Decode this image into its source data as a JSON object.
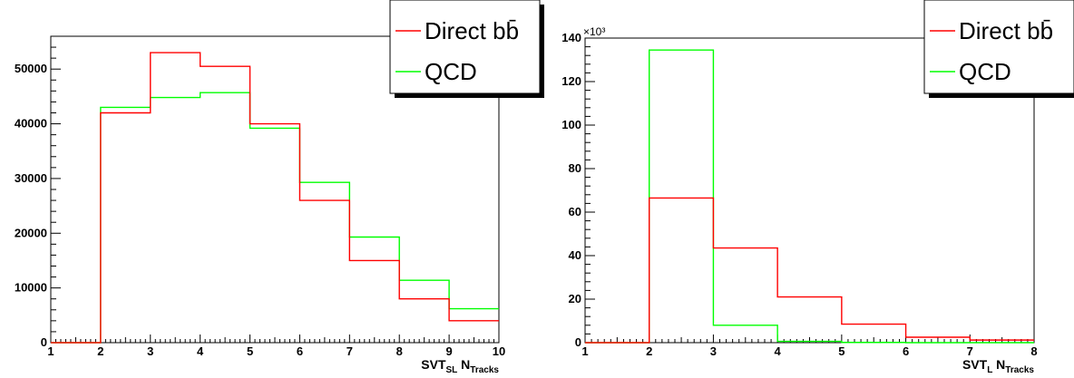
{
  "chart_data": [
    {
      "type": "histogram",
      "xlim": [
        1,
        10
      ],
      "ylim": [
        0,
        56000
      ],
      "x_ticks": [
        1,
        2,
        3,
        4,
        5,
        6,
        7,
        8,
        9,
        10
      ],
      "y_ticks": [
        0,
        10000,
        20000,
        30000,
        40000,
        50000
      ],
      "x_title": {
        "main": "SVT",
        "sub": "SL",
        "main2": "N",
        "sub2": "Tracks"
      },
      "bin_edges": [
        1,
        2,
        3,
        4,
        5,
        6,
        7,
        8,
        9,
        10
      ],
      "series": [
        {
          "name": "Direct bb̄",
          "color": "#ff0000",
          "values": [
            0,
            42000,
            53000,
            50500,
            40000,
            26000,
            15000,
            8000,
            4000
          ]
        },
        {
          "name": "QCD",
          "color": "#00ff00",
          "values": [
            0,
            43000,
            44800,
            45700,
            39200,
            29300,
            19300,
            11400,
            6200
          ]
        }
      ],
      "legend_placement": "top-right"
    },
    {
      "type": "histogram",
      "xlim": [
        1,
        8
      ],
      "ylim": [
        0,
        140
      ],
      "y_multiplier": "×10³",
      "x_ticks": [
        1,
        2,
        3,
        4,
        5,
        6,
        7,
        8
      ],
      "y_ticks": [
        0,
        20,
        40,
        60,
        80,
        100,
        120,
        140
      ],
      "x_title": {
        "main": "SVT",
        "sub": "L",
        "main2": "N",
        "sub2": "Tracks"
      },
      "bin_edges": [
        1,
        2,
        3,
        4,
        5,
        6,
        7,
        8
      ],
      "series": [
        {
          "name": "Direct bb̄",
          "color": "#ff0000",
          "values": [
            0,
            66.5,
            43.5,
            21,
            8.5,
            2.5,
            1.2
          ]
        },
        {
          "name": "QCD",
          "color": "#00ff00",
          "values": [
            0,
            134.5,
            8,
            0.6,
            0.1,
            0,
            0
          ]
        }
      ],
      "legend_placement": "top-right"
    }
  ]
}
